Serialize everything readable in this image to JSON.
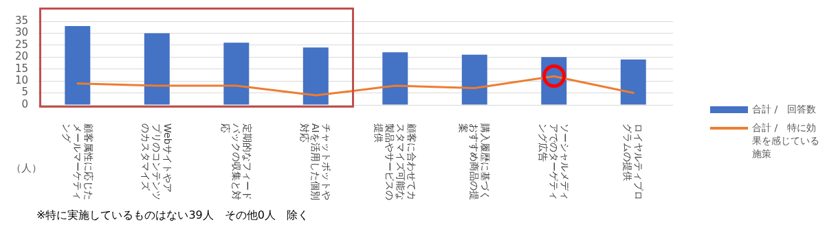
{
  "chart_data": {
    "type": "bar",
    "categories": [
      "顧客属性に応じたメールマーケティング",
      "Webサイトやアプリのコンテンツのカスタマイズ",
      "定期的なフィードバックの収集と対応",
      "チャットボットやAIを活用した個別対応",
      "顧客に合わせてカスタマイズ可能な製品やサービスの提供",
      "購入履歴に基づくおすすめ商品の提案",
      "ソーシャルメディアでのターゲティング広告",
      "ロイヤルティプログラムの提供"
    ],
    "series": [
      {
        "name": "合計 /　回答数",
        "color": "#4472c4",
        "values": [
          33,
          30,
          26,
          24,
          22,
          21,
          20,
          19
        ]
      },
      {
        "name": "合計 /　特に効果を感じている施策",
        "type": "line",
        "color": "#ed7d31",
        "values": [
          9,
          8,
          8,
          4,
          8,
          7,
          12,
          5
        ]
      }
    ],
    "ylim": [
      0,
      35
    ],
    "yticks": [
      0,
      5,
      10,
      15,
      20,
      25,
      30,
      35
    ],
    "grid": "y",
    "legend": "right",
    "marker": "none",
    "annotations": [
      "（人）",
      "※特に実施しているものはない39人　その他0人　除く"
    ]
  }
}
